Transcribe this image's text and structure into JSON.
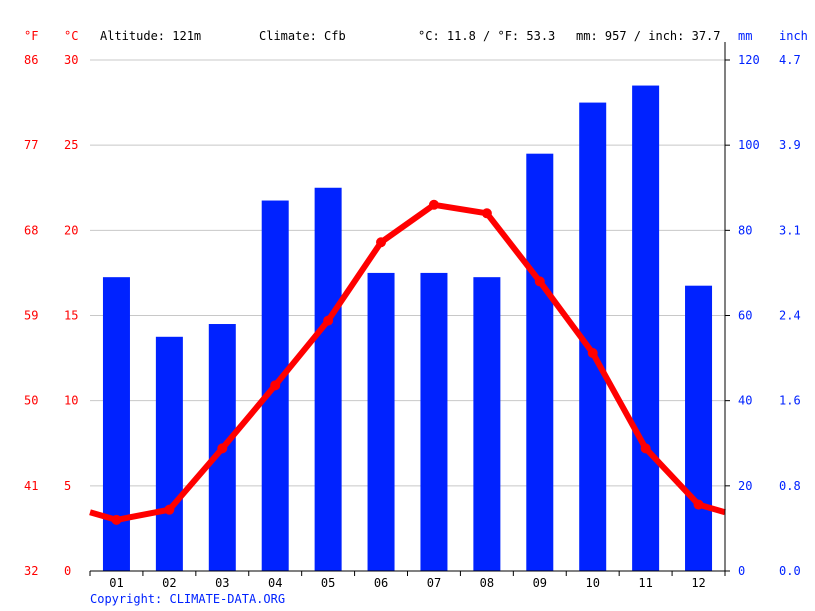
{
  "header": {
    "unit_f": "°F",
    "unit_c": "°C",
    "altitude": "Altitude: 121m",
    "climate": "Climate: Cfb",
    "temp_avg": "°C: 11.8 / °F: 53.3",
    "precip_total": "mm: 957 / inch: 37.7",
    "unit_mm": "mm",
    "unit_inch": "inch"
  },
  "copyright": "Copyright: CLIMATE-DATA.ORG",
  "colors": {
    "temperature": "#ff0000",
    "precipitation": "#0022ff",
    "grid": "#c8c8c8",
    "temp_axis": "#ff0000",
    "precip_axis": "#0022ff"
  },
  "chart_data": {
    "type": "bar+line",
    "categories": [
      "01",
      "02",
      "03",
      "04",
      "05",
      "06",
      "07",
      "08",
      "09",
      "10",
      "11",
      "12"
    ],
    "series": [
      {
        "type": "bar",
        "axis": "right",
        "unit": "mm",
        "values": [
          69,
          55,
          58,
          87,
          90,
          70,
          70,
          69,
          98,
          110,
          114,
          67
        ]
      },
      {
        "type": "line",
        "axis": "left",
        "unit": "°C",
        "values": [
          3.0,
          3.6,
          7.2,
          10.9,
          14.7,
          19.3,
          21.5,
          21.0,
          17.0,
          12.8,
          7.2,
          3.9
        ]
      }
    ],
    "left_axis": {
      "ylim": [
        0,
        30
      ],
      "ticks_c": [
        "0",
        "5",
        "10",
        "15",
        "20",
        "25",
        "30"
      ],
      "ticks_f": [
        "32",
        "41",
        "50",
        "59",
        "68",
        "77",
        "86"
      ]
    },
    "right_axis": {
      "ylim": [
        0,
        120
      ],
      "ticks_mm": [
        "0",
        "20",
        "40",
        "60",
        "80",
        "100",
        "120"
      ],
      "ticks_inch": [
        "0.0",
        "0.8",
        "1.6",
        "2.4",
        "3.1",
        "3.9",
        "4.7"
      ]
    },
    "grid": true
  }
}
